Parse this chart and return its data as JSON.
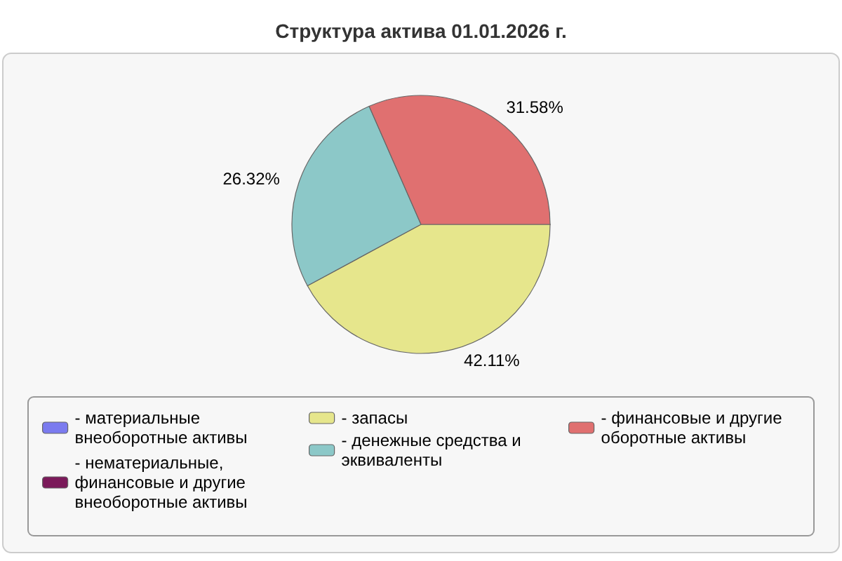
{
  "chart_data": {
    "type": "pie",
    "title": "Структура актива 01.01.2026 г.",
    "categories": [
      "- материальные внеоборотные активы",
      "- нематериальные, финансовые и другие внеоборотные активы",
      "- запасы",
      "- денежные средства и эквиваленты",
      "- финансовые и другие оборотные активы"
    ],
    "values": [
      0,
      0,
      42.11,
      26.32,
      31.58
    ],
    "colors": [
      "#7b7bef",
      "#7b1a5a",
      "#e6e68c",
      "#8cc8c8",
      "#e07070"
    ],
    "value_labels": [
      null,
      null,
      "42.11%",
      "26.32%",
      "31.58%"
    ],
    "legend": "bottom"
  }
}
